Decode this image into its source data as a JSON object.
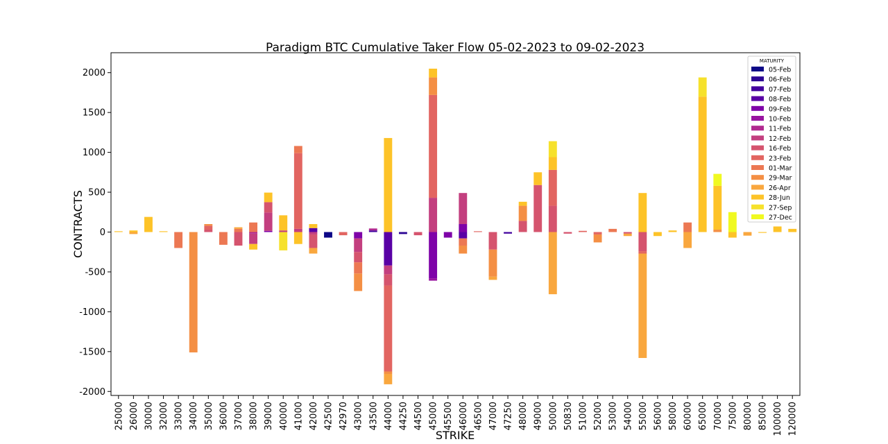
{
  "chart_data": {
    "type": "bar",
    "stacked": true,
    "title": "Paradigm BTC Cumulative Taker Flow 05-02-2023 to 09-02-2023",
    "xlabel": "STRIKE",
    "ylabel": "CONTRACTS",
    "ylim": [
      -2050,
      2250
    ],
    "yticks": [
      -2000,
      -1500,
      -1000,
      -500,
      0,
      500,
      1000,
      1500,
      2000
    ],
    "grid": false,
    "legend": {
      "title": "MATURITY",
      "placement": "top-right"
    },
    "categories": [
      "25000",
      "26000",
      "30000",
      "32000",
      "33000",
      "34000",
      "35000",
      "36000",
      "37000",
      "38000",
      "39000",
      "40000",
      "41000",
      "42000",
      "42500",
      "42970",
      "43000",
      "43500",
      "44000",
      "44250",
      "44500",
      "45000",
      "45500",
      "46000",
      "46500",
      "47000",
      "47250",
      "48000",
      "49000",
      "50000",
      "50830",
      "51000",
      "52000",
      "53000",
      "54000",
      "55000",
      "56000",
      "58000",
      "60000",
      "65000",
      "70000",
      "75000",
      "80000",
      "85000",
      "100000",
      "120000"
    ],
    "series": [
      {
        "name": "05-Feb",
        "color": "#0d0887",
        "values": [
          0,
          0,
          0,
          0,
          0,
          0,
          0,
          0,
          0,
          0,
          0,
          0,
          0,
          0,
          -70,
          0,
          0,
          0,
          0,
          0,
          0,
          0,
          0,
          0,
          0,
          0,
          0,
          0,
          0,
          0,
          0,
          0,
          0,
          0,
          0,
          0,
          0,
          0,
          0,
          0,
          0,
          0,
          0,
          0,
          0,
          0
        ]
      },
      {
        "name": "06-Feb",
        "color": "#2c0594",
        "values": [
          0,
          0,
          0,
          0,
          0,
          0,
          0,
          0,
          0,
          0,
          0,
          0,
          0,
          0,
          0,
          0,
          0,
          0,
          0,
          -25,
          0,
          0,
          0,
          0,
          0,
          0,
          0,
          0,
          0,
          0,
          0,
          0,
          0,
          0,
          0,
          0,
          0,
          0,
          0,
          0,
          0,
          0,
          0,
          0,
          0,
          0
        ]
      },
      {
        "name": "07-Feb",
        "color": "#43039e",
        "values": [
          0,
          0,
          0,
          0,
          0,
          0,
          0,
          0,
          0,
          0,
          0,
          0,
          0,
          0,
          0,
          0,
          0,
          20,
          0,
          0,
          0,
          0,
          0,
          0,
          0,
          0,
          -20,
          0,
          0,
          0,
          0,
          0,
          0,
          0,
          0,
          0,
          0,
          0,
          0,
          0,
          0,
          0,
          0,
          0,
          0,
          0
        ]
      },
      {
        "name": "08-Feb",
        "color": "#5901a5",
        "values": [
          0,
          0,
          0,
          0,
          0,
          0,
          0,
          0,
          0,
          0,
          0,
          0,
          0,
          50,
          0,
          0,
          0,
          0,
          -420,
          0,
          0,
          0,
          0,
          -80,
          0,
          0,
          0,
          0,
          0,
          0,
          0,
          0,
          0,
          0,
          0,
          0,
          0,
          0,
          0,
          0,
          0,
          0,
          0,
          0,
          0,
          0
        ]
      },
      {
        "name": "09-Feb",
        "color": "#7e03a8",
        "values": [
          0,
          0,
          0,
          0,
          0,
          0,
          0,
          0,
          0,
          0,
          15,
          0,
          0,
          0,
          0,
          0,
          -80,
          0,
          0,
          0,
          0,
          -580,
          -70,
          100,
          0,
          0,
          0,
          0,
          0,
          0,
          0,
          0,
          0,
          0,
          0,
          0,
          0,
          0,
          0,
          0,
          0,
          0,
          0,
          0,
          0,
          0
        ]
      },
      {
        "name": "10-Feb",
        "color": "#9814a0",
        "values": [
          0,
          0,
          0,
          0,
          0,
          0,
          0,
          0,
          0,
          0,
          0,
          0,
          0,
          0,
          0,
          0,
          0,
          0,
          0,
          0,
          0,
          -30,
          0,
          0,
          0,
          0,
          0,
          0,
          0,
          0,
          0,
          0,
          0,
          0,
          0,
          0,
          0,
          0,
          0,
          0,
          0,
          0,
          0,
          0,
          0,
          0
        ]
      },
      {
        "name": "11-Feb",
        "color": "#b12a90",
        "values": [
          0,
          0,
          0,
          0,
          0,
          0,
          0,
          0,
          0,
          -20,
          0,
          0,
          0,
          0,
          0,
          0,
          0,
          25,
          0,
          0,
          0,
          0,
          0,
          0,
          0,
          0,
          0,
          0,
          0,
          0,
          0,
          0,
          0,
          0,
          0,
          0,
          0,
          0,
          0,
          0,
          0,
          0,
          0,
          0,
          0,
          0
        ]
      },
      {
        "name": "12-Feb",
        "color": "#c33f7f",
        "values": [
          0,
          0,
          0,
          0,
          0,
          0,
          0,
          0,
          0,
          -130,
          230,
          20,
          40,
          -30,
          0,
          0,
          -170,
          0,
          -110,
          0,
          0,
          430,
          0,
          390,
          0,
          0,
          0,
          0,
          0,
          0,
          0,
          0,
          0,
          0,
          0,
          0,
          0,
          0,
          0,
          0,
          0,
          0,
          0,
          0,
          0,
          0
        ]
      },
      {
        "name": "16-Feb",
        "color": "#d5546e",
        "values": [
          0,
          0,
          0,
          0,
          0,
          0,
          30,
          0,
          -170,
          0,
          130,
          0,
          0,
          -170,
          0,
          0,
          -130,
          0,
          -140,
          0,
          -40,
          0,
          0,
          0,
          0,
          -220,
          0,
          140,
          590,
          330,
          -20,
          0,
          0,
          0,
          -20,
          -240,
          0,
          0,
          0,
          0,
          0,
          0,
          0,
          0,
          0,
          0
        ]
      },
      {
        "name": "23-Feb",
        "color": "#e26561",
        "values": [
          0,
          0,
          0,
          0,
          0,
          0,
          50,
          0,
          0,
          0,
          0,
          0,
          950,
          0,
          0,
          -40,
          0,
          0,
          -1080,
          0,
          0,
          1290,
          0,
          0,
          10,
          0,
          0,
          0,
          0,
          450,
          0,
          15,
          -30,
          0,
          0,
          -30,
          0,
          0,
          0,
          0,
          0,
          0,
          0,
          0,
          0,
          0
        ]
      },
      {
        "name": "01-Mar",
        "color": "#ec7853",
        "values": [
          0,
          0,
          0,
          0,
          -200,
          0,
          0,
          -160,
          40,
          120,
          0,
          0,
          90,
          0,
          0,
          0,
          -140,
          0,
          0,
          0,
          0,
          0,
          0,
          -90,
          0,
          0,
          0,
          0,
          0,
          0,
          0,
          0,
          0,
          40,
          0,
          0,
          0,
          0,
          120,
          0,
          0,
          0,
          0,
          0,
          0,
          0
        ]
      },
      {
        "name": "29-Mar",
        "color": "#f48f44",
        "values": [
          0,
          0,
          0,
          0,
          0,
          -1510,
          20,
          0,
          0,
          0,
          0,
          0,
          0,
          0,
          0,
          0,
          -220,
          0,
          -30,
          0,
          0,
          220,
          0,
          -100,
          0,
          -340,
          0,
          190,
          0,
          0,
          0,
          0,
          -100,
          0,
          0,
          0,
          0,
          0,
          0,
          0,
          30,
          0,
          0,
          0,
          0,
          0
        ]
      },
      {
        "name": "26-Apr",
        "color": "#f9a73e",
        "values": [
          0,
          -25,
          0,
          0,
          0,
          0,
          0,
          0,
          20,
          0,
          0,
          0,
          0,
          -70,
          0,
          0,
          0,
          0,
          -130,
          0,
          0,
          0,
          0,
          0,
          0,
          -40,
          0,
          0,
          0,
          -780,
          0,
          0,
          0,
          0,
          -30,
          -1310,
          0,
          0,
          -200,
          0,
          0,
          0,
          -45,
          0,
          0,
          0
        ]
      },
      {
        "name": "28-Jun",
        "color": "#fdc328",
        "values": [
          10,
          20,
          190,
          10,
          0,
          0,
          0,
          0,
          0,
          -70,
          120,
          190,
          -150,
          50,
          0,
          0,
          0,
          0,
          1180,
          0,
          0,
          110,
          0,
          0,
          0,
          0,
          0,
          50,
          160,
          160,
          0,
          0,
          0,
          0,
          0,
          490,
          -50,
          20,
          0,
          1700,
          550,
          -70,
          0,
          -10,
          70,
          40
        ]
      },
      {
        "name": "27-Sep",
        "color": "#f6e12c",
        "values": [
          0,
          0,
          0,
          0,
          0,
          0,
          0,
          0,
          0,
          0,
          0,
          -230,
          0,
          0,
          0,
          0,
          0,
          0,
          0,
          0,
          0,
          0,
          0,
          0,
          0,
          0,
          0,
          0,
          0,
          200,
          0,
          0,
          0,
          0,
          0,
          0,
          0,
          0,
          0,
          240,
          0,
          0,
          0,
          0,
          0,
          0
        ]
      },
      {
        "name": "27-Dec",
        "color": "#f0f921",
        "values": [
          0,
          0,
          0,
          0,
          0,
          0,
          0,
          0,
          0,
          0,
          0,
          0,
          0,
          0,
          0,
          0,
          0,
          0,
          0,
          0,
          0,
          0,
          0,
          0,
          0,
          0,
          0,
          0,
          0,
          0,
          0,
          0,
          0,
          0,
          0,
          0,
          0,
          0,
          0,
          0,
          150,
          250,
          0,
          0,
          0,
          0
        ]
      }
    ]
  }
}
